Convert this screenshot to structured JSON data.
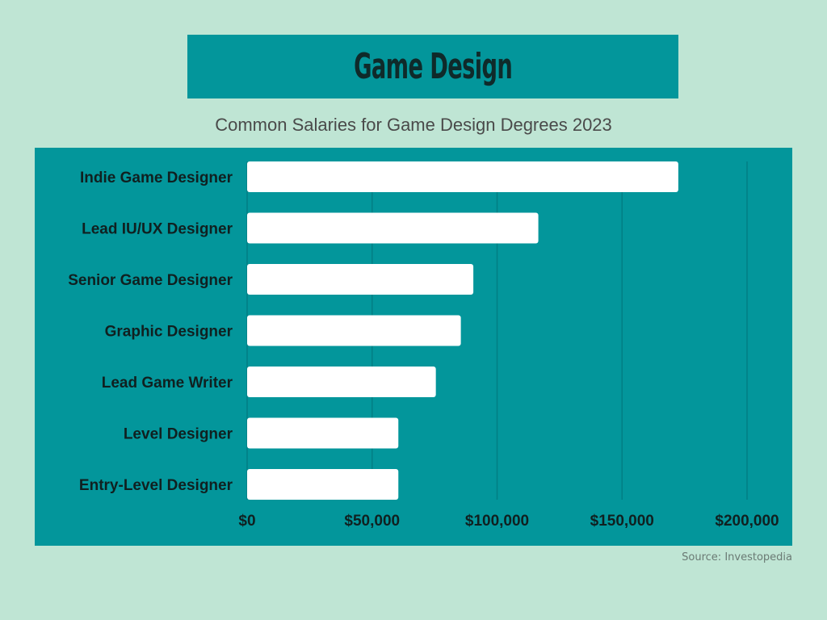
{
  "header": {
    "title": "Game Design",
    "subtitle": "Common Salaries for Game Design Degrees 2023"
  },
  "source": "Source:  Investopedia",
  "colors": {
    "background": "#bfe5d4",
    "panel": "#03969b",
    "bar": "#ffffff",
    "label": "#102020",
    "gridline": "#027f84"
  },
  "chart_data": {
    "type": "bar",
    "orientation": "horizontal",
    "title": "Common Salaries for Game Design Degrees 2023",
    "categories": [
      "Indie Game Designer",
      "Lead IU/UX Designer",
      "Senior Game Designer",
      "Graphic Designer",
      "Lead Game Writer",
      "Level Designer",
      "Entry-Level Designer"
    ],
    "values": [
      172500,
      116500,
      90500,
      85500,
      75500,
      60500,
      60500
    ],
    "xlim": [
      0,
      200000
    ],
    "x_ticks": [
      0,
      50000,
      100000,
      150000,
      200000
    ],
    "x_tick_labels": [
      "$0",
      "$50,000",
      "$100,000",
      "$150,000",
      "$200,000"
    ],
    "grid": true,
    "legend": "none"
  }
}
